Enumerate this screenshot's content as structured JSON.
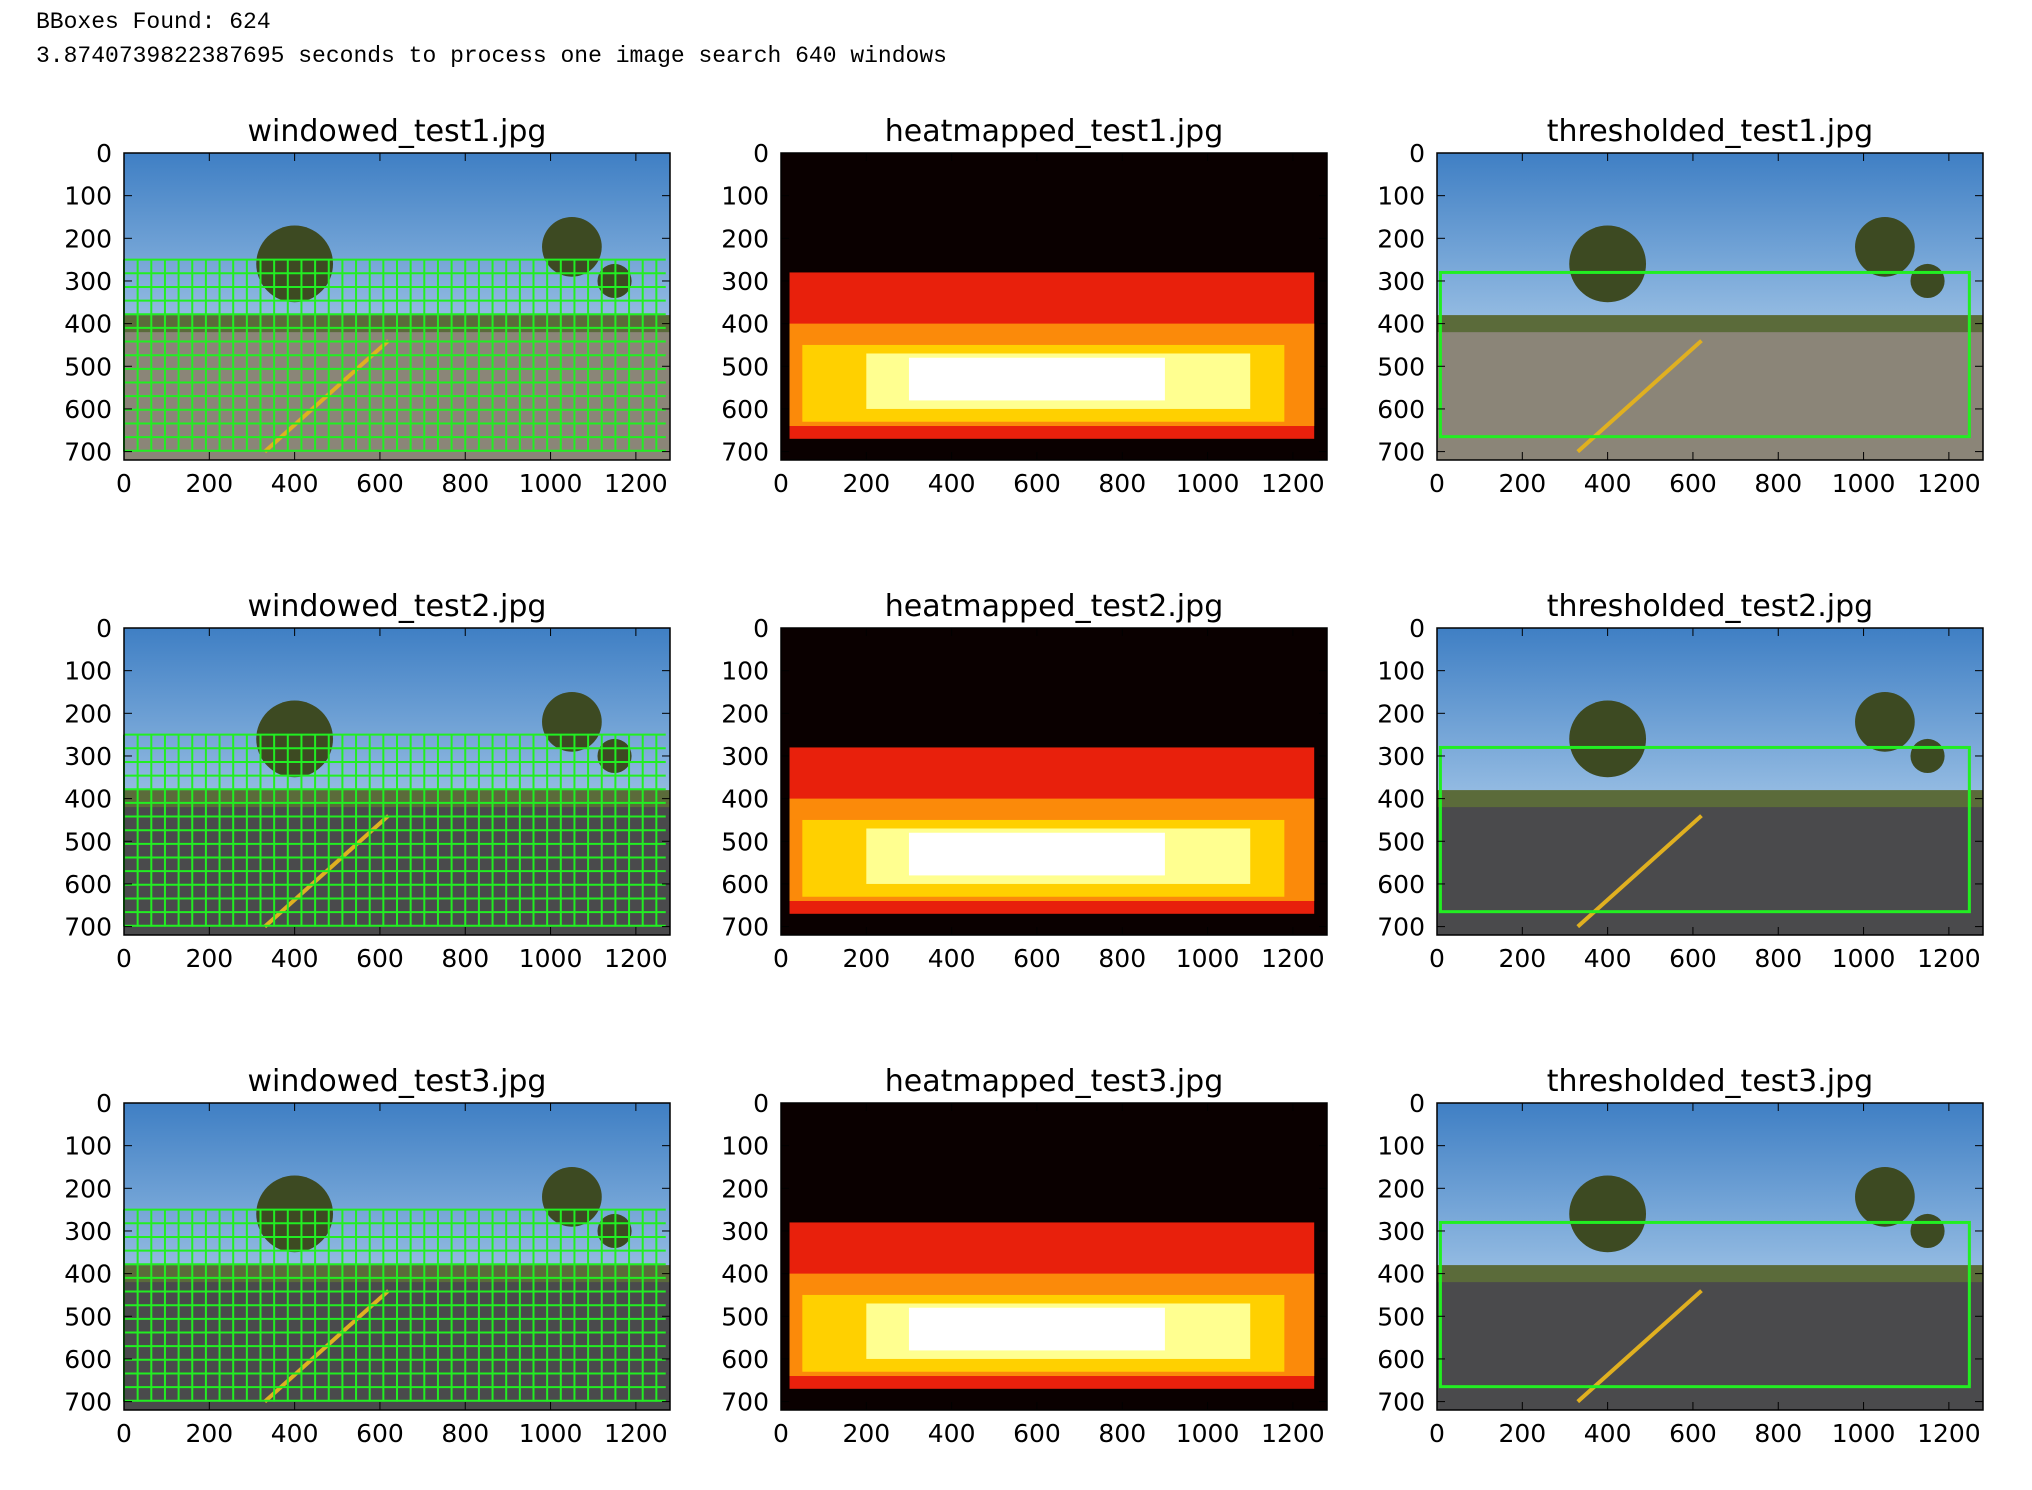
{
  "header": {
    "lines": [
      "BBoxes Found: 624",
      "3.8740739822387695 seconds to process one image search 640 windows"
    ]
  },
  "rows": [
    [
      "windowed_test1.jpg",
      "heatmapped_test1.jpg",
      "thresholded_test1.jpg"
    ],
    [
      "windowed_test2.jpg",
      "heatmapped_test2.jpg",
      "thresholded_test2.jpg"
    ],
    [
      "windowed_test3.jpg",
      "heatmapped_test3.jpg",
      "thresholded_test3.jpg"
    ]
  ],
  "xticks": [
    0,
    200,
    400,
    600,
    800,
    1000,
    1200
  ],
  "yticks": [
    0,
    100,
    200,
    300,
    400,
    500,
    600,
    700
  ]
}
